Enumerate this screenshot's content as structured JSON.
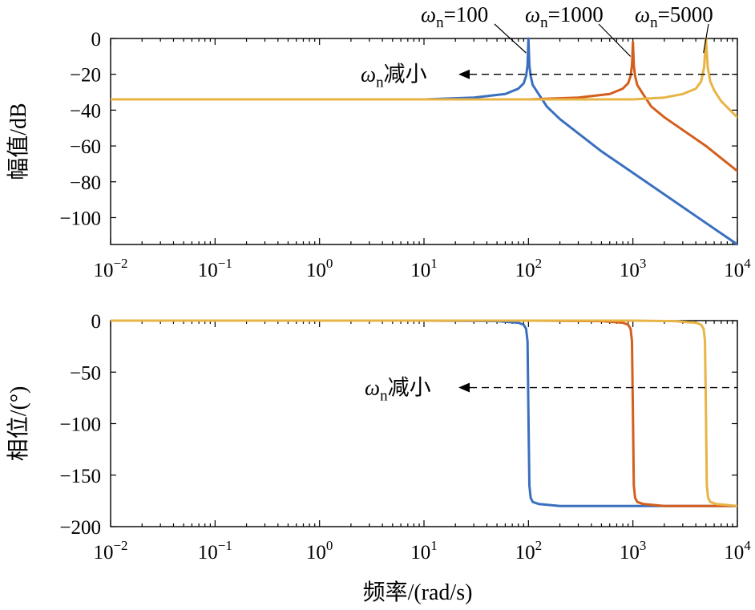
{
  "colors": {
    "wn_100": "#3a6fbf",
    "wn_1000": "#d45f1d",
    "wn_5000": "#e8b445",
    "axes": "#000000"
  },
  "chart_data": [
    {
      "type": "line",
      "title": "",
      "xlabel": "",
      "ylabel": "幅值/dB",
      "x_scale": "log",
      "xlim": [
        0.01,
        10000
      ],
      "ylim": [
        -115,
        0
      ],
      "x_ticks": [
        0.01,
        0.1,
        1,
        10,
        100,
        1000,
        10000
      ],
      "x_tick_labels": [
        {
          "base": "10",
          "exp": "−2"
        },
        {
          "base": "10",
          "exp": "−1"
        },
        {
          "base": "10",
          "exp": "0"
        },
        {
          "base": "10",
          "exp": "1"
        },
        {
          "base": "10",
          "exp": "2"
        },
        {
          "base": "10",
          "exp": "3"
        },
        {
          "base": "10",
          "exp": "4"
        }
      ],
      "y_ticks": [
        0,
        -20,
        -40,
        -60,
        -80,
        -100
      ],
      "y_tick_labels": [
        "0",
        "−20",
        "−40",
        "−60",
        "−80",
        "−100"
      ],
      "grid": false,
      "series": [
        {
          "name": "ωn=100",
          "color_key": "wn_100",
          "x": [
            0.01,
            1,
            10,
            30,
            60,
            80,
            90,
            95,
            98,
            100,
            102,
            105,
            110,
            125,
            150,
            200,
            500,
            1000,
            5000,
            10000
          ],
          "y": [
            -34,
            -34,
            -34,
            -33,
            -31,
            -28,
            -25,
            -21,
            -15,
            0,
            -15,
            -21,
            -26,
            -31,
            -38,
            -45,
            -63,
            -75,
            -103,
            -115
          ]
        },
        {
          "name": "ωn=1000",
          "color_key": "wn_1000",
          "x": [
            0.01,
            10,
            100,
            300,
            600,
            800,
            900,
            950,
            980,
            1000,
            1020,
            1050,
            1100,
            1250,
            1500,
            2000,
            5000,
            10000
          ],
          "y": [
            -34,
            -34,
            -34,
            -33,
            -31,
            -28,
            -25,
            -21,
            -15,
            -2,
            -15,
            -21,
            -26,
            -31,
            -38,
            -44,
            -60,
            -74
          ]
        },
        {
          "name": "ωn=5000",
          "color_key": "wn_5000",
          "x": [
            0.01,
            100,
            1000,
            2000,
            3000,
            4000,
            4500,
            4800,
            5000,
            5200,
            5500,
            6000,
            7000,
            8500,
            10000
          ],
          "y": [
            -34,
            -34,
            -34,
            -33,
            -31,
            -28,
            -24,
            -16,
            0,
            -16,
            -24,
            -29,
            -35,
            -40,
            -44
          ]
        }
      ],
      "annotations": {
        "label_100": {
          "sym": "ω",
          "sub": "n",
          "text": "=100"
        },
        "label_1000": {
          "sym": "ω",
          "sub": "n",
          "text": "=1000"
        },
        "label_5000": {
          "sym": "ω",
          "sub": "n",
          "text": "=5000"
        },
        "decrease": {
          "sym": "ω",
          "sub": "n",
          "text": "减小"
        },
        "ref_level": -20
      }
    },
    {
      "type": "line",
      "title": "",
      "xlabel": "频率/(rad/s)",
      "ylabel": "相位/(°)",
      "x_scale": "log",
      "xlim": [
        0.01,
        10000
      ],
      "ylim": [
        -200,
        0
      ],
      "x_ticks": [
        0.01,
        0.1,
        1,
        10,
        100,
        1000,
        10000
      ],
      "x_tick_labels": [
        {
          "base": "10",
          "exp": "−2"
        },
        {
          "base": "10",
          "exp": "−1"
        },
        {
          "base": "10",
          "exp": "0"
        },
        {
          "base": "10",
          "exp": "1"
        },
        {
          "base": "10",
          "exp": "2"
        },
        {
          "base": "10",
          "exp": "3"
        },
        {
          "base": "10",
          "exp": "4"
        }
      ],
      "y_ticks": [
        0,
        -50,
        -100,
        -150,
        -200
      ],
      "y_tick_labels": [
        "0",
        "−50",
        "−100",
        "−150",
        "−200"
      ],
      "grid": false,
      "series": [
        {
          "name": "ωn=100",
          "color_key": "wn_100",
          "x": [
            0.01,
            10,
            50,
            80,
            90,
            95,
            98,
            100,
            102,
            105,
            110,
            125,
            200,
            10000
          ],
          "y": [
            0,
            0,
            -0.5,
            -2,
            -4,
            -8,
            -20,
            -90,
            -160,
            -172,
            -176,
            -178,
            -180,
            -180
          ]
        },
        {
          "name": "ωn=1000",
          "color_key": "wn_1000",
          "x": [
            0.01,
            100,
            500,
            800,
            900,
            950,
            980,
            1000,
            1020,
            1050,
            1100,
            1250,
            2000,
            10000
          ],
          "y": [
            0,
            0,
            -0.5,
            -2,
            -4,
            -8,
            -20,
            -90,
            -160,
            -172,
            -176,
            -178,
            -180,
            -180
          ]
        },
        {
          "name": "ωn=5000",
          "color_key": "wn_5000",
          "x": [
            0.01,
            1000,
            2500,
            4000,
            4500,
            4750,
            4900,
            5000,
            5100,
            5250,
            5500,
            6250,
            10000
          ],
          "y": [
            0,
            0,
            -0.5,
            -2,
            -4,
            -8,
            -20,
            -90,
            -160,
            -172,
            -176,
            -178,
            -180
          ]
        }
      ],
      "annotations": {
        "decrease": {
          "sym": "ω",
          "sub": "n",
          "text": "减小"
        },
        "ref_level": -65
      }
    }
  ]
}
